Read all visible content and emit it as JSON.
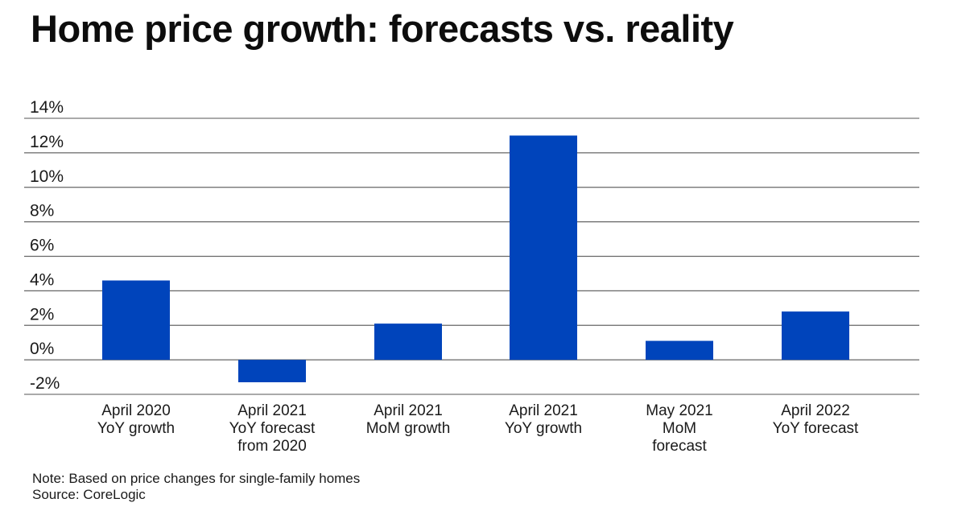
{
  "chart_data": {
    "type": "bar",
    "title": "Home price growth: forecasts vs. reality",
    "xlabel": "",
    "ylabel": "",
    "categories": [
      [
        "April 2020",
        "YoY growth"
      ],
      [
        "April 2021",
        "YoY forecast",
        "from 2020"
      ],
      [
        "April 2021",
        "MoM growth"
      ],
      [
        "April 2021",
        "YoY growth"
      ],
      [
        "May 2021",
        "MoM",
        "forecast"
      ],
      [
        "April 2022",
        "YoY forecast"
      ]
    ],
    "values": [
      4.6,
      -1.3,
      2.1,
      13.0,
      1.1,
      2.8
    ],
    "ylim": [
      -2,
      14
    ],
    "yticks": [
      14,
      12,
      10,
      8,
      6,
      4,
      2,
      0,
      -2
    ],
    "ytick_labels": [
      "14%",
      "12%",
      "10%",
      "8%",
      "6%",
      "4%",
      "2%",
      "0%",
      "-2%"
    ],
    "grid": true,
    "legend": "none",
    "bar_color": "#0044BB",
    "grid_color": "#666666"
  },
  "title": "Home price growth: forecasts vs. reality",
  "notes": {
    "note": "Note: Based on price changes for single-family homes",
    "source": "Source: CoreLogic"
  }
}
